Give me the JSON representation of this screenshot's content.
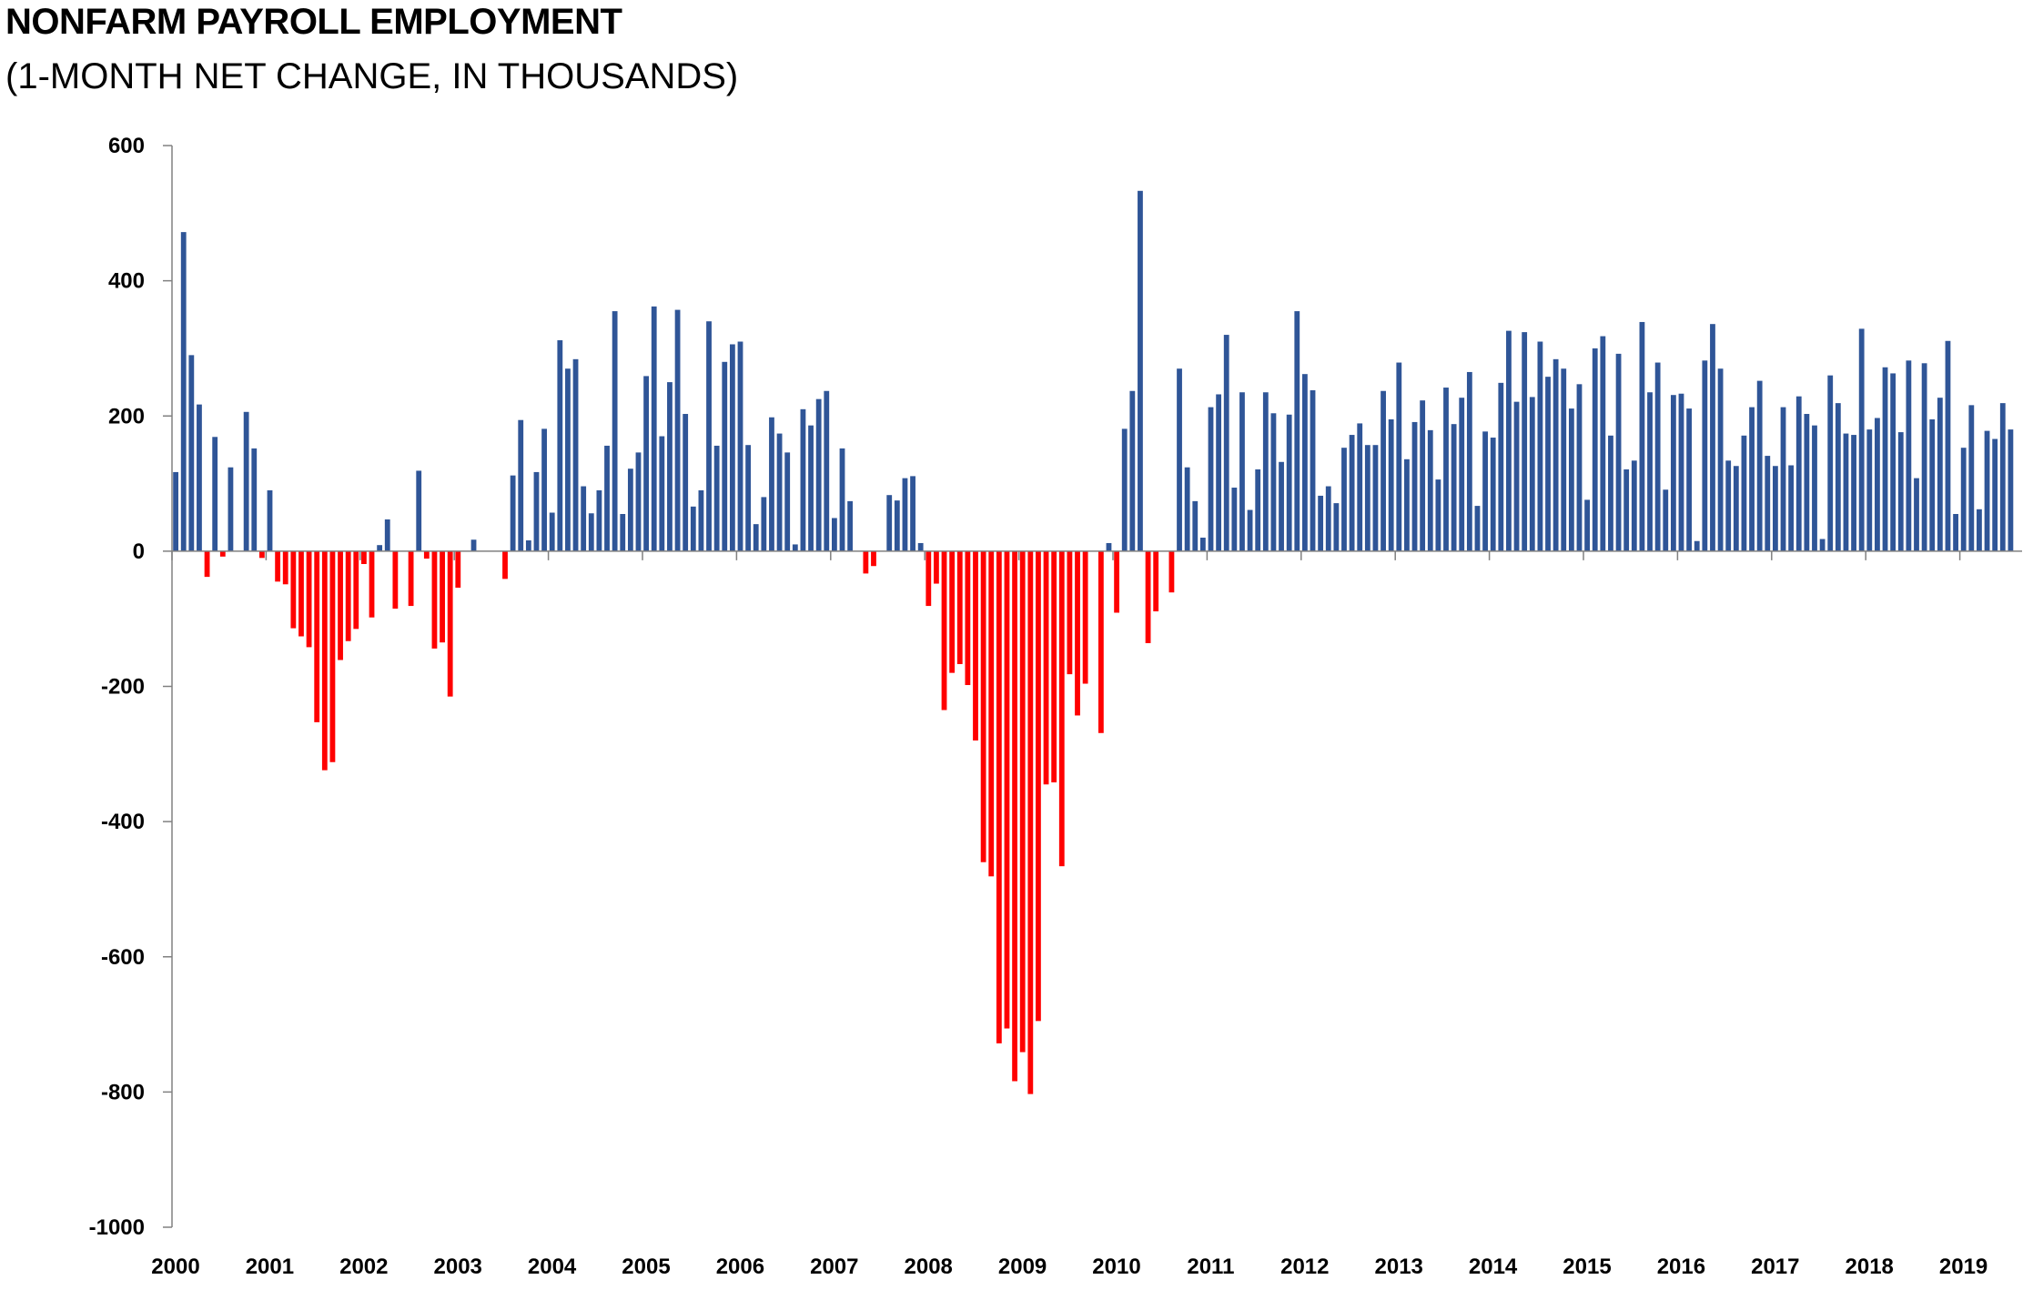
{
  "chart_data": {
    "type": "bar",
    "title": "NONFARM PAYROLL EMPLOYMENT",
    "subtitle": "(1-MONTH NET CHANGE, IN THOUSANDS)",
    "xlabel": "",
    "ylabel": "",
    "ylim": [
      -1000,
      600
    ],
    "yticks": [
      600,
      400,
      200,
      0,
      -200,
      -400,
      -600,
      -800,
      -1000
    ],
    "yticks_labels": [
      "600",
      "400",
      "200",
      "0",
      "-200",
      "-400",
      "-600",
      "-800",
      "-1000"
    ],
    "xticks_labels": [
      "2000",
      "2001",
      "2002",
      "2003",
      "2004",
      "2005",
      "2006",
      "2007",
      "2008",
      "2009",
      "2010",
      "2011",
      "2012",
      "2013",
      "2014",
      "2015",
      "2016",
      "2017",
      "2018",
      "2019"
    ],
    "start": "2000-01",
    "grid": false,
    "legend": "none",
    "colors": {
      "positive": "#2F5597",
      "negative": "#FF0000",
      "axis": "#808080"
    },
    "values": [
      117,
      472,
      290,
      217,
      -38,
      169,
      -8,
      124,
      0,
      206,
      152,
      -10,
      90,
      -45,
      -49,
      -114,
      -126,
      -142,
      -253,
      -324,
      -312,
      -161,
      -133,
      -115,
      -19,
      -98,
      9,
      47,
      -85,
      0,
      -81,
      119,
      -11,
      -144,
      -135,
      -215,
      -54,
      0,
      17,
      0,
      0,
      0,
      -41,
      112,
      194,
      16,
      117,
      181,
      57,
      312,
      270,
      284,
      96,
      56,
      90,
      156,
      355,
      55,
      122,
      146,
      259,
      362,
      170,
      250,
      357,
      203,
      66,
      90,
      340,
      156,
      280,
      306,
      310,
      157,
      40,
      80,
      198,
      174,
      146,
      10,
      210,
      186,
      225,
      237,
      49,
      152,
      74,
      0,
      -33,
      -22,
      0,
      83,
      75,
      108,
      111,
      12,
      -81,
      -48,
      -235,
      -180,
      -167,
      -198,
      -280,
      -460,
      -481,
      -728,
      -706,
      -784,
      -741,
      -803,
      -695,
      -345,
      -342,
      -466,
      -182,
      -243,
      -196,
      0,
      -269,
      12,
      -91,
      181,
      237,
      533,
      -136,
      -89,
      0,
      -61,
      270,
      124,
      74,
      20,
      213,
      232,
      320,
      94,
      235,
      61,
      121,
      235,
      204,
      132,
      202,
      355,
      262,
      238,
      82,
      96,
      71,
      153,
      172,
      189,
      157,
      157,
      237,
      195,
      279,
      136,
      191,
      223,
      179,
      106,
      242,
      188,
      227,
      265,
      67,
      177,
      168,
      249,
      326,
      221,
      324,
      228,
      310,
      258,
      284,
      270,
      211,
      247,
      76,
      300,
      318,
      171,
      292,
      121,
      134,
      339,
      235,
      279,
      91,
      231,
      233,
      211,
      15,
      282,
      336,
      270,
      134,
      126,
      171,
      213,
      252,
      141,
      126,
      213,
      127,
      229,
      203,
      186,
      18,
      260,
      219,
      174,
      172,
      329,
      180,
      197,
      272,
      263,
      176,
      282,
      108,
      278,
      195,
      227,
      311,
      55,
      153,
      216,
      62,
      178,
      166,
      219,
      180
    ]
  }
}
